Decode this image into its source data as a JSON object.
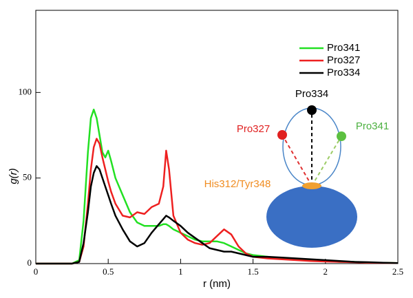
{
  "chart_data": {
    "type": "line",
    "x_label": "r (nm)",
    "y_label": "g(r)",
    "x": [
      0,
      0.1,
      0.2,
      0.25,
      0.3,
      0.33,
      0.36,
      0.38,
      0.4,
      0.42,
      0.44,
      0.46,
      0.48,
      0.5,
      0.52,
      0.55,
      0.6,
      0.65,
      0.7,
      0.75,
      0.8,
      0.85,
      0.88,
      0.9,
      0.92,
      0.95,
      1.0,
      1.05,
      1.1,
      1.15,
      1.2,
      1.25,
      1.3,
      1.35,
      1.4,
      1.45,
      1.5,
      1.6,
      1.7,
      1.8,
      1.9,
      2.0,
      2.1,
      2.2,
      2.3,
      2.4,
      2.5
    ],
    "series": [
      {
        "name": "Pro341",
        "color": "#22e022",
        "values": [
          0,
          0,
          0,
          0,
          2,
          25,
          65,
          85,
          90,
          85,
          75,
          65,
          62,
          66,
          60,
          50,
          40,
          30,
          24,
          22,
          22,
          22,
          23,
          23,
          22,
          20,
          18,
          16,
          14,
          13,
          13,
          13,
          12,
          10,
          8,
          6,
          5,
          4,
          3,
          2.5,
          2,
          1.5,
          1,
          1,
          0.5,
          0.5,
          0.3
        ]
      },
      {
        "name": "Pro327",
        "color": "#ee2020",
        "values": [
          0,
          0,
          0,
          0,
          1,
          10,
          35,
          55,
          68,
          73,
          70,
          62,
          55,
          48,
          42,
          35,
          28,
          27,
          30,
          29,
          33,
          35,
          45,
          66,
          55,
          28,
          18,
          14,
          12,
          11,
          12,
          16,
          20,
          17,
          10,
          6,
          4,
          3,
          2.5,
          2,
          1.5,
          1.2,
          1,
          0.8,
          0.5,
          0.4,
          0.3
        ]
      },
      {
        "name": "Pro334",
        "color": "#000000",
        "values": [
          0,
          0,
          0,
          0,
          1,
          12,
          30,
          45,
          53,
          57,
          55,
          50,
          45,
          40,
          35,
          28,
          20,
          13,
          10,
          12,
          18,
          23,
          26,
          28,
          27,
          25,
          22,
          18,
          15,
          12,
          9,
          8,
          7,
          7,
          6,
          5,
          4,
          4,
          3.5,
          3,
          2.5,
          2,
          1.5,
          1,
          0.8,
          0.5,
          0.3
        ]
      }
    ],
    "xlim": [
      0,
      2.5
    ],
    "xticks": [
      0,
      0.5,
      1,
      1.5,
      2,
      2.5
    ],
    "ylim": [
      0,
      148
    ],
    "yticks": [
      0,
      50,
      100
    ],
    "legend": "upper right",
    "annotations": [
      "Pro334",
      "Pro327",
      "Pro341",
      "His312/Tyr348"
    ]
  }
}
